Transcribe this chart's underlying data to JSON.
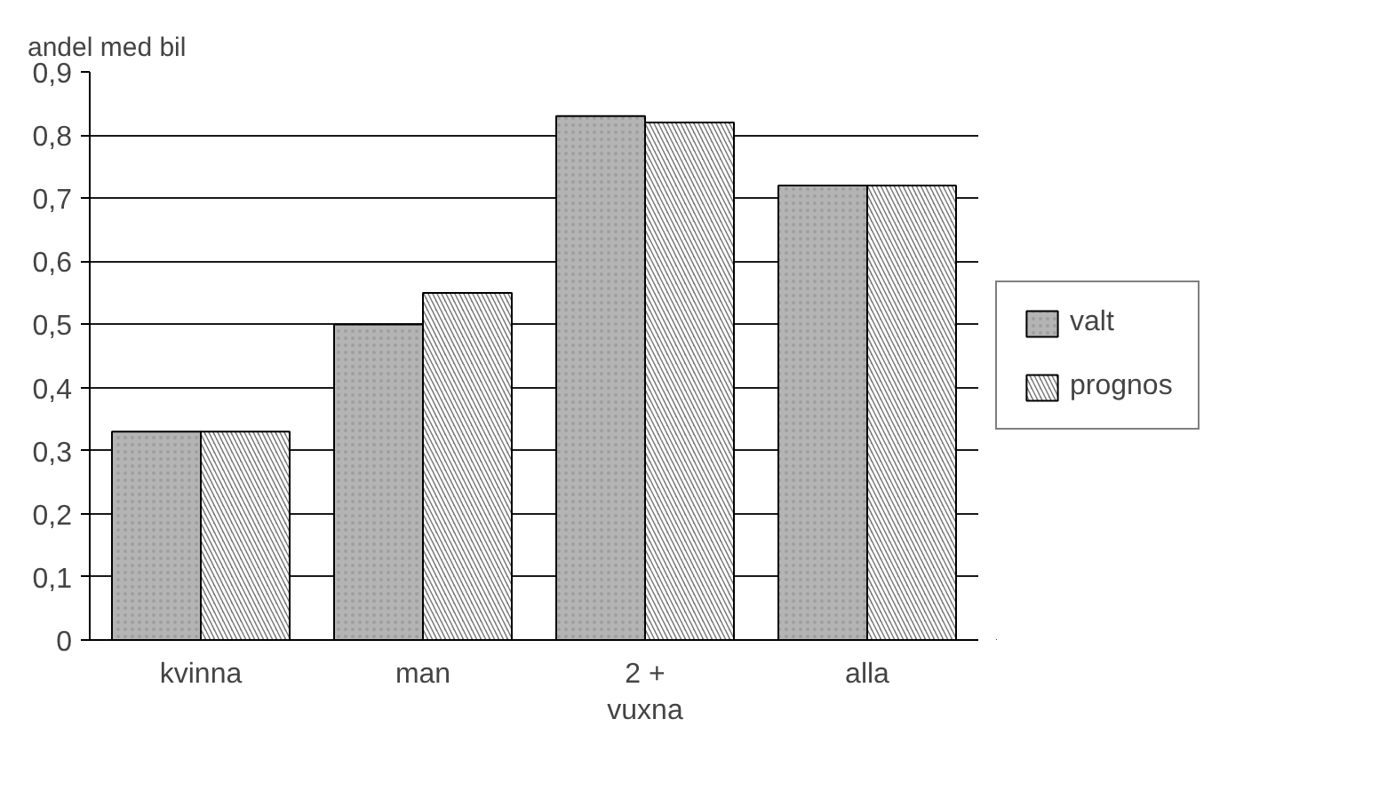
{
  "chart_data": {
    "type": "bar",
    "ylabel": "andel med bil",
    "categories": [
      "kvinna",
      "man",
      "2 +\nvuxna",
      "alla"
    ],
    "series": [
      {
        "name": "valt",
        "color": "#b4b4b4",
        "values": [
          0.33,
          0.5,
          0.83,
          0.72
        ]
      },
      {
        "name": "prognos",
        "color": "#7a7a7a",
        "values": [
          0.33,
          0.55,
          0.82,
          0.72
        ]
      }
    ],
    "ylim": [
      0,
      0.9
    ],
    "yticks": [
      {
        "value": 0,
        "label": "0"
      },
      {
        "value": 0.1,
        "label": "0,1"
      },
      {
        "value": 0.2,
        "label": "0,2"
      },
      {
        "value": 0.3,
        "label": "0,3"
      },
      {
        "value": 0.4,
        "label": "0,4"
      },
      {
        "value": 0.5,
        "label": "0,5"
      },
      {
        "value": 0.6,
        "label": "0,6"
      },
      {
        "value": 0.7,
        "label": "0,7"
      },
      {
        "value": 0.8,
        "label": "0,8"
      },
      {
        "value": 0.9,
        "label": "0,9"
      }
    ],
    "grid": "y",
    "legend": "right"
  }
}
